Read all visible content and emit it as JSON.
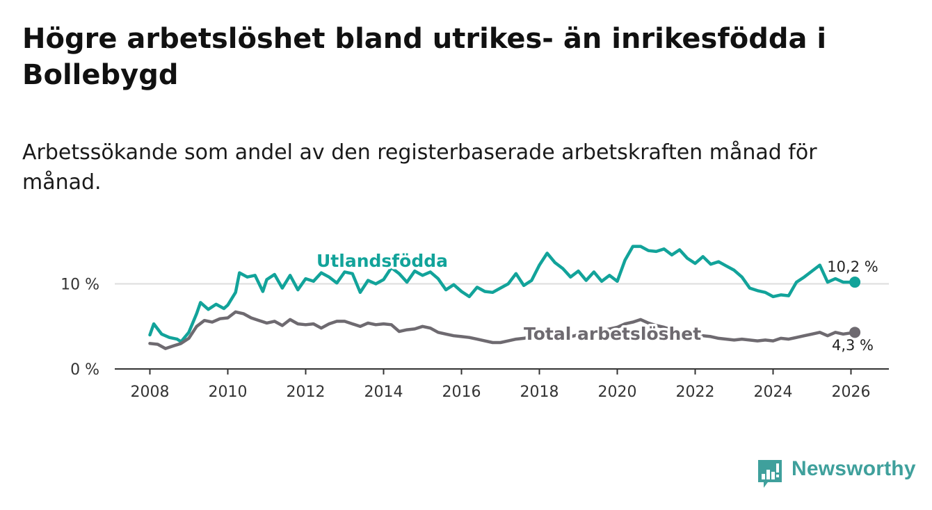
{
  "title": "Högre arbetslöshet bland utrikes- än inrikesfödda i Bollebygd",
  "subtitle": "Arbetssökande som andel av den registerbaserade arbetskraften månad för månad.",
  "brand": {
    "name": "Newsworthy",
    "icon": "bar-chart-icon"
  },
  "colors": {
    "utlandsfodda": "#12a39a",
    "total": "#6e6a70",
    "grid": "#dddddd",
    "axis": "#333333"
  },
  "chart_data": {
    "type": "line",
    "title": "Högre arbetslöshet bland utrikes- än inrikesfödda i Bollebygd",
    "xlabel": "",
    "ylabel": "",
    "xlim": [
      2008,
      2027
    ],
    "ylim": [
      0,
      15
    ],
    "x_ticks": [
      {
        "value": 2008,
        "label": "2008"
      },
      {
        "value": 2010,
        "label": "2010"
      },
      {
        "value": 2012,
        "label": "2012"
      },
      {
        "value": 2014,
        "label": "2014"
      },
      {
        "value": 2016,
        "label": "2016"
      },
      {
        "value": 2018,
        "label": "2018"
      },
      {
        "value": 2020,
        "label": "2020"
      },
      {
        "value": 2022,
        "label": "2022"
      },
      {
        "value": 2024,
        "label": "2024"
      },
      {
        "value": 2026,
        "label": "2026"
      }
    ],
    "y_ticks": [
      {
        "value": 0,
        "label": "0 %"
      },
      {
        "value": 10,
        "label": "10 %"
      }
    ],
    "series": [
      {
        "name": "Utlandsfödda",
        "label": "Utlandsfödda",
        "end_label": "10,2 %",
        "color": "#12a39a",
        "points": [
          [
            2008.0,
            4.0
          ],
          [
            2008.1,
            5.3
          ],
          [
            2008.3,
            4.1
          ],
          [
            2008.5,
            3.7
          ],
          [
            2008.7,
            3.5
          ],
          [
            2008.8,
            3.2
          ],
          [
            2009.0,
            4.3
          ],
          [
            2009.2,
            6.5
          ],
          [
            2009.3,
            7.8
          ],
          [
            2009.5,
            7.0
          ],
          [
            2009.7,
            7.6
          ],
          [
            2009.9,
            7.1
          ],
          [
            2010.0,
            7.5
          ],
          [
            2010.2,
            9.0
          ],
          [
            2010.3,
            11.3
          ],
          [
            2010.5,
            10.8
          ],
          [
            2010.7,
            11.0
          ],
          [
            2010.9,
            9.1
          ],
          [
            2011.0,
            10.5
          ],
          [
            2011.2,
            11.1
          ],
          [
            2011.4,
            9.5
          ],
          [
            2011.6,
            11.0
          ],
          [
            2011.8,
            9.3
          ],
          [
            2012.0,
            10.6
          ],
          [
            2012.2,
            10.3
          ],
          [
            2012.4,
            11.3
          ],
          [
            2012.6,
            10.8
          ],
          [
            2012.8,
            10.1
          ],
          [
            2013.0,
            11.4
          ],
          [
            2013.2,
            11.2
          ],
          [
            2013.4,
            9.0
          ],
          [
            2013.6,
            10.4
          ],
          [
            2013.8,
            10.0
          ],
          [
            2014.0,
            10.5
          ],
          [
            2014.2,
            11.9
          ],
          [
            2014.4,
            11.2
          ],
          [
            2014.6,
            10.2
          ],
          [
            2014.8,
            11.5
          ],
          [
            2015.0,
            11.0
          ],
          [
            2015.2,
            11.4
          ],
          [
            2015.4,
            10.6
          ],
          [
            2015.6,
            9.3
          ],
          [
            2015.8,
            9.9
          ],
          [
            2016.0,
            9.1
          ],
          [
            2016.2,
            8.5
          ],
          [
            2016.4,
            9.6
          ],
          [
            2016.6,
            9.1
          ],
          [
            2016.8,
            9.0
          ],
          [
            2017.0,
            9.5
          ],
          [
            2017.2,
            10.0
          ],
          [
            2017.4,
            11.2
          ],
          [
            2017.6,
            9.8
          ],
          [
            2017.8,
            10.4
          ],
          [
            2018.0,
            12.2
          ],
          [
            2018.2,
            13.6
          ],
          [
            2018.4,
            12.5
          ],
          [
            2018.6,
            11.8
          ],
          [
            2018.8,
            10.8
          ],
          [
            2019.0,
            11.5
          ],
          [
            2019.2,
            10.4
          ],
          [
            2019.4,
            11.4
          ],
          [
            2019.6,
            10.3
          ],
          [
            2019.8,
            11.0
          ],
          [
            2020.0,
            10.3
          ],
          [
            2020.2,
            12.8
          ],
          [
            2020.4,
            14.4
          ],
          [
            2020.6,
            14.4
          ],
          [
            2020.8,
            13.9
          ],
          [
            2021.0,
            13.8
          ],
          [
            2021.2,
            14.1
          ],
          [
            2021.4,
            13.4
          ],
          [
            2021.6,
            14.0
          ],
          [
            2021.8,
            13.0
          ],
          [
            2022.0,
            12.4
          ],
          [
            2022.2,
            13.2
          ],
          [
            2022.4,
            12.3
          ],
          [
            2022.6,
            12.6
          ],
          [
            2022.8,
            12.1
          ],
          [
            2023.0,
            11.6
          ],
          [
            2023.2,
            10.8
          ],
          [
            2023.4,
            9.5
          ],
          [
            2023.6,
            9.2
          ],
          [
            2023.8,
            9.0
          ],
          [
            2024.0,
            8.5
          ],
          [
            2024.2,
            8.7
          ],
          [
            2024.4,
            8.6
          ],
          [
            2024.6,
            10.2
          ],
          [
            2024.8,
            10.8
          ],
          [
            2025.0,
            11.5
          ],
          [
            2025.2,
            12.2
          ],
          [
            2025.4,
            10.2
          ],
          [
            2025.6,
            10.6
          ],
          [
            2025.8,
            10.2
          ],
          [
            2026.1,
            10.2
          ]
        ]
      },
      {
        "name": "Total arbetslöshet",
        "label": "Total arbetslöshet",
        "end_label": "4,3 %",
        "color": "#6e6a70",
        "points": [
          [
            2008.0,
            3.0
          ],
          [
            2008.2,
            2.9
          ],
          [
            2008.4,
            2.4
          ],
          [
            2008.6,
            2.7
          ],
          [
            2008.8,
            3.0
          ],
          [
            2009.0,
            3.6
          ],
          [
            2009.2,
            5.0
          ],
          [
            2009.4,
            5.7
          ],
          [
            2009.6,
            5.5
          ],
          [
            2009.8,
            5.9
          ],
          [
            2010.0,
            6.0
          ],
          [
            2010.2,
            6.7
          ],
          [
            2010.4,
            6.5
          ],
          [
            2010.6,
            6.0
          ],
          [
            2010.8,
            5.7
          ],
          [
            2011.0,
            5.4
          ],
          [
            2011.2,
            5.6
          ],
          [
            2011.4,
            5.1
          ],
          [
            2011.6,
            5.8
          ],
          [
            2011.8,
            5.3
          ],
          [
            2012.0,
            5.2
          ],
          [
            2012.2,
            5.3
          ],
          [
            2012.4,
            4.8
          ],
          [
            2012.6,
            5.3
          ],
          [
            2012.8,
            5.6
          ],
          [
            2013.0,
            5.6
          ],
          [
            2013.2,
            5.3
          ],
          [
            2013.4,
            5.0
          ],
          [
            2013.6,
            5.4
          ],
          [
            2013.8,
            5.2
          ],
          [
            2014.0,
            5.3
          ],
          [
            2014.2,
            5.2
          ],
          [
            2014.4,
            4.4
          ],
          [
            2014.6,
            4.6
          ],
          [
            2014.8,
            4.7
          ],
          [
            2015.0,
            5.0
          ],
          [
            2015.2,
            4.8
          ],
          [
            2015.4,
            4.3
          ],
          [
            2015.6,
            4.1
          ],
          [
            2015.8,
            3.9
          ],
          [
            2016.0,
            3.8
          ],
          [
            2016.2,
            3.7
          ],
          [
            2016.4,
            3.5
          ],
          [
            2016.6,
            3.3
          ],
          [
            2016.8,
            3.1
          ],
          [
            2017.0,
            3.1
          ],
          [
            2017.2,
            3.3
          ],
          [
            2017.4,
            3.5
          ],
          [
            2017.6,
            3.6
          ],
          [
            2017.8,
            3.8
          ],
          [
            2018.0,
            3.9
          ],
          [
            2018.2,
            3.8
          ],
          [
            2018.4,
            3.7
          ],
          [
            2018.6,
            3.9
          ],
          [
            2018.8,
            3.8
          ],
          [
            2019.0,
            4.0
          ],
          [
            2019.2,
            4.1
          ],
          [
            2019.4,
            4.3
          ],
          [
            2019.6,
            4.5
          ],
          [
            2019.8,
            4.7
          ],
          [
            2020.0,
            4.9
          ],
          [
            2020.2,
            5.3
          ],
          [
            2020.4,
            5.5
          ],
          [
            2020.6,
            5.8
          ],
          [
            2020.8,
            5.4
          ],
          [
            2021.0,
            5.1
          ],
          [
            2021.2,
            4.9
          ],
          [
            2021.4,
            4.6
          ],
          [
            2021.6,
            4.4
          ],
          [
            2021.8,
            4.2
          ],
          [
            2022.0,
            4.0
          ],
          [
            2022.2,
            3.9
          ],
          [
            2022.4,
            3.8
          ],
          [
            2022.6,
            3.6
          ],
          [
            2022.8,
            3.5
          ],
          [
            2023.0,
            3.4
          ],
          [
            2023.2,
            3.5
          ],
          [
            2023.4,
            3.4
          ],
          [
            2023.6,
            3.3
          ],
          [
            2023.8,
            3.4
          ],
          [
            2024.0,
            3.3
          ],
          [
            2024.2,
            3.6
          ],
          [
            2024.4,
            3.5
          ],
          [
            2024.6,
            3.7
          ],
          [
            2024.8,
            3.9
          ],
          [
            2025.0,
            4.1
          ],
          [
            2025.2,
            4.3
          ],
          [
            2025.4,
            3.9
          ],
          [
            2025.6,
            4.3
          ],
          [
            2025.8,
            4.1
          ],
          [
            2026.1,
            4.3
          ]
        ]
      }
    ]
  }
}
